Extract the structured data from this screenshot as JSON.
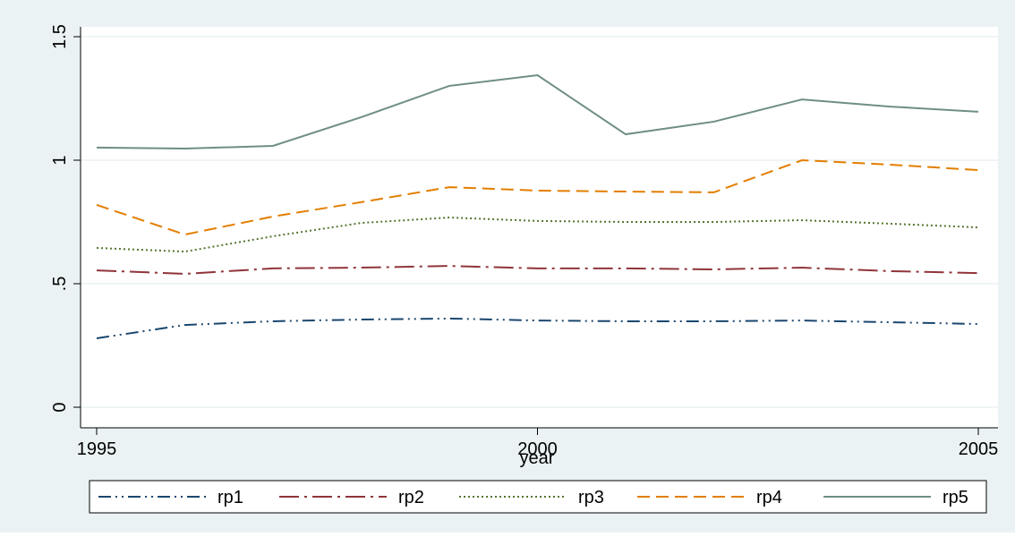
{
  "chart_data": {
    "type": "line",
    "x_label": "year",
    "x": [
      1995,
      1996,
      1997,
      1998,
      1999,
      2000,
      2001,
      2002,
      2003,
      2004,
      2005
    ],
    "xlim": [
      1995,
      2005
    ],
    "xticks": [
      1995,
      2000,
      2005
    ],
    "ylim": [
      0,
      1.5
    ],
    "yticks": [
      0,
      {
        "value": 0.5,
        "label": ".5"
      },
      1,
      1.5
    ],
    "grid": true,
    "series": [
      {
        "name": "rp1",
        "color": "#1a476f",
        "values": [
          0.279,
          0.333,
          0.348,
          0.355,
          0.359,
          0.351,
          0.348,
          0.348,
          0.351,
          0.344,
          0.337
        ]
      },
      {
        "name": "rp2",
        "color": "#90353b",
        "values": [
          0.554,
          0.54,
          0.562,
          0.565,
          0.572,
          0.562,
          0.562,
          0.558,
          0.565,
          0.551,
          0.543
        ]
      },
      {
        "name": "rp3",
        "color": "#55752f",
        "values": [
          0.645,
          0.63,
          0.692,
          0.746,
          0.768,
          0.754,
          0.75,
          0.75,
          0.757,
          0.743,
          0.728
        ]
      },
      {
        "name": "rp4",
        "color": "#e37e00",
        "values": [
          0.819,
          0.699,
          0.772,
          0.83,
          0.891,
          0.877,
          0.873,
          0.87,
          1.0,
          0.982,
          0.96
        ]
      },
      {
        "name": "rp5",
        "color": "#6e8e84",
        "values": [
          1.051,
          1.047,
          1.058,
          1.174,
          1.301,
          1.344,
          1.105,
          1.156,
          1.246,
          1.217,
          1.196
        ]
      }
    ]
  }
}
